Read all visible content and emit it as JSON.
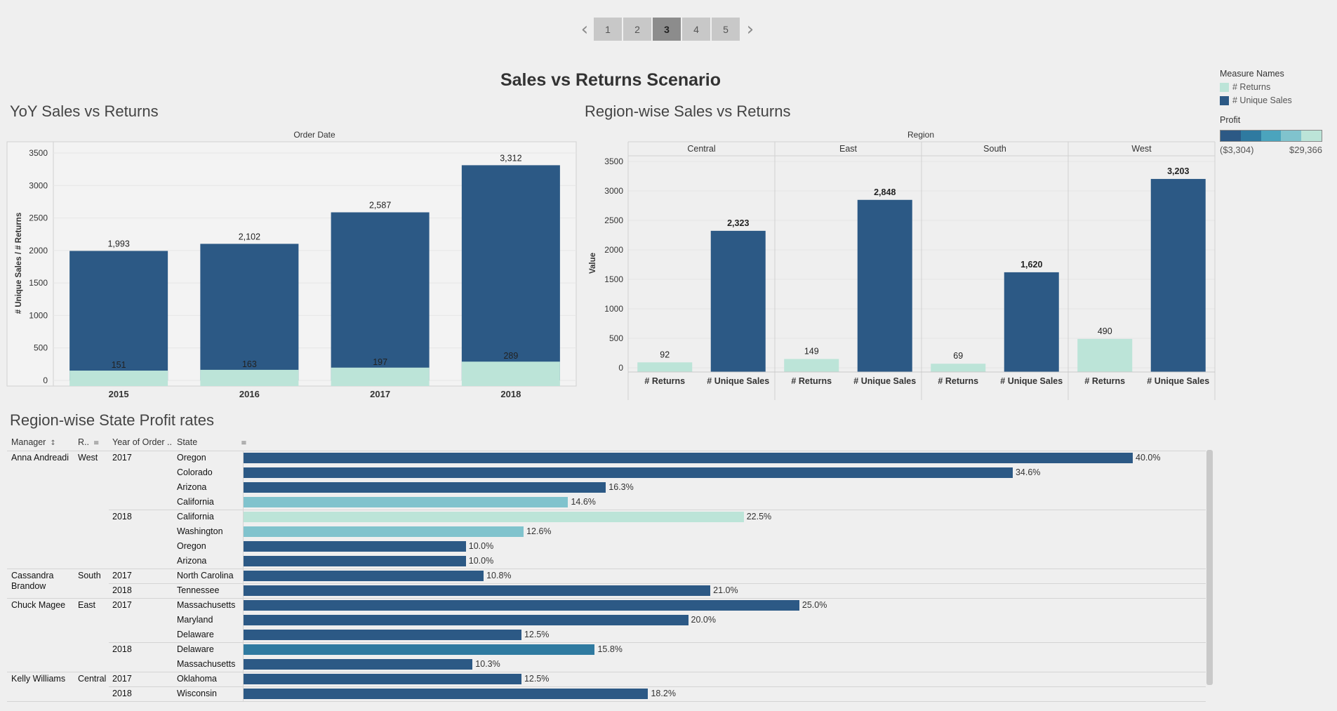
{
  "pager": {
    "prev_icon": "chevron-left-icon",
    "next_icon": "chevron-right-icon",
    "pages": [
      "1",
      "2",
      "3",
      "4",
      "5"
    ],
    "active": "3"
  },
  "title": "Sales vs Returns Scenario",
  "legend": {
    "title": "Measure Names",
    "items": [
      {
        "label": "# Returns",
        "color": "#bce4d8"
      },
      {
        "label": "# Unique Sales",
        "color": "#2c5985"
      }
    ],
    "profit_title": "Profit",
    "profit_colors": [
      "#2c5985",
      "#2f7aa0",
      "#4ba4bd",
      "#80c3cd",
      "#bce4d8"
    ],
    "profit_min": "($3,304)",
    "profit_max": "$29,366"
  },
  "chart_data": [
    {
      "type": "bar",
      "title": "YoY Sales vs Returns",
      "header": "Order Date",
      "ylabel": "# Unique Sales / # Returns",
      "categories": [
        "2015",
        "2016",
        "2017",
        "2018"
      ],
      "ylim": [
        0,
        3500
      ],
      "yticks": [
        "0",
        "500",
        "1000",
        "1500",
        "2000",
        "2500",
        "3000",
        "3500"
      ],
      "series": [
        {
          "name": "# Unique Sales",
          "values": [
            1993,
            2102,
            2587,
            3312
          ],
          "labels": [
            "1,993",
            "2,102",
            "2,587",
            "3,312"
          ],
          "color": "#2c5985"
        },
        {
          "name": "# Returns",
          "values": [
            151,
            163,
            197,
            289
          ],
          "labels": [
            "151",
            "163",
            "197",
            "289"
          ],
          "color": "#bce4d8"
        }
      ]
    },
    {
      "type": "bar",
      "title": "Region-wise Sales vs Returns",
      "header": "Region",
      "ylabel": "Value",
      "ylim": [
        0,
        3500
      ],
      "yticks": [
        "0",
        "500",
        "1000",
        "1500",
        "2000",
        "2500",
        "3000",
        "3500"
      ],
      "panels": [
        {
          "region": "Central",
          "bars": [
            {
              "measure": "# Returns",
              "value": 92,
              "label": "92",
              "color": "#bce4d8"
            },
            {
              "measure": "# Unique Sales",
              "value": 2323,
              "label": "2,323",
              "color": "#2c5985"
            }
          ]
        },
        {
          "region": "East",
          "bars": [
            {
              "measure": "# Returns",
              "value": 149,
              "label": "149",
              "color": "#bce4d8"
            },
            {
              "measure": "# Unique Sales",
              "value": 2848,
              "label": "2,848",
              "color": "#2c5985"
            }
          ]
        },
        {
          "region": "South",
          "bars": [
            {
              "measure": "# Returns",
              "value": 69,
              "label": "69",
              "color": "#bce4d8"
            },
            {
              "measure": "# Unique Sales",
              "value": 1620,
              "label": "1,620",
              "color": "#2c5985"
            }
          ]
        },
        {
          "region": "West",
          "bars": [
            {
              "measure": "# Returns",
              "value": 490,
              "label": "490",
              "color": "#bce4d8"
            },
            {
              "measure": "# Unique Sales",
              "value": 3203,
              "label": "3,203",
              "color": "#2c5985"
            }
          ]
        }
      ]
    },
    {
      "type": "bar",
      "orientation": "horizontal",
      "title": "Region-wise State Profit rates",
      "columns": [
        "Manager",
        "R..",
        "Year of Order ..",
        "State"
      ],
      "rows": [
        {
          "manager": "Anna Andreadi",
          "region": "West",
          "year": "2017",
          "state": "Oregon",
          "value": 40.0,
          "label": "40.0%",
          "color": "#2c5985"
        },
        {
          "manager": "",
          "region": "",
          "year": "",
          "state": "Colorado",
          "value": 34.6,
          "label": "34.6%",
          "color": "#2c5985"
        },
        {
          "manager": "",
          "region": "",
          "year": "",
          "state": "Arizona",
          "value": 16.3,
          "label": "16.3%",
          "color": "#2c5985"
        },
        {
          "manager": "",
          "region": "",
          "year": "",
          "state": "California",
          "value": 14.6,
          "label": "14.6%",
          "color": "#80c3cd"
        },
        {
          "manager": "",
          "region": "",
          "year": "2018",
          "state": "California",
          "value": 22.5,
          "label": "22.5%",
          "color": "#bce4d8"
        },
        {
          "manager": "",
          "region": "",
          "year": "",
          "state": "Washington",
          "value": 12.6,
          "label": "12.6%",
          "color": "#80c3cd"
        },
        {
          "manager": "",
          "region": "",
          "year": "",
          "state": "Oregon",
          "value": 10.0,
          "label": "10.0%",
          "color": "#2c5985"
        },
        {
          "manager": "",
          "region": "",
          "year": "",
          "state": "Arizona",
          "value": 10.0,
          "label": "10.0%",
          "color": "#2c5985"
        },
        {
          "manager": "Cassandra Brandow",
          "region": "South",
          "year": "2017",
          "state": "North Carolina",
          "value": 10.8,
          "label": "10.8%",
          "color": "#2c5985"
        },
        {
          "manager": "",
          "region": "",
          "year": "2018",
          "state": "Tennessee",
          "value": 21.0,
          "label": "21.0%",
          "color": "#2c5985"
        },
        {
          "manager": "Chuck Magee",
          "region": "East",
          "year": "2017",
          "state": "Massachusetts",
          "value": 25.0,
          "label": "25.0%",
          "color": "#2c5985"
        },
        {
          "manager": "",
          "region": "",
          "year": "",
          "state": "Maryland",
          "value": 20.0,
          "label": "20.0%",
          "color": "#2c5985"
        },
        {
          "manager": "",
          "region": "",
          "year": "",
          "state": "Delaware",
          "value": 12.5,
          "label": "12.5%",
          "color": "#2c5985"
        },
        {
          "manager": "",
          "region": "",
          "year": "2018",
          "state": "Delaware",
          "value": 15.8,
          "label": "15.8%",
          "color": "#2f7aa0"
        },
        {
          "manager": "",
          "region": "",
          "year": "",
          "state": "Massachusetts",
          "value": 10.3,
          "label": "10.3%",
          "color": "#2c5985"
        },
        {
          "manager": "Kelly Williams",
          "region": "Central",
          "year": "2017",
          "state": "Oklahoma",
          "value": 12.5,
          "label": "12.5%",
          "color": "#2c5985"
        },
        {
          "manager": "",
          "region": "",
          "year": "2018",
          "state": "Wisconsin",
          "value": 18.2,
          "label": "18.2%",
          "color": "#2c5985"
        }
      ]
    }
  ]
}
